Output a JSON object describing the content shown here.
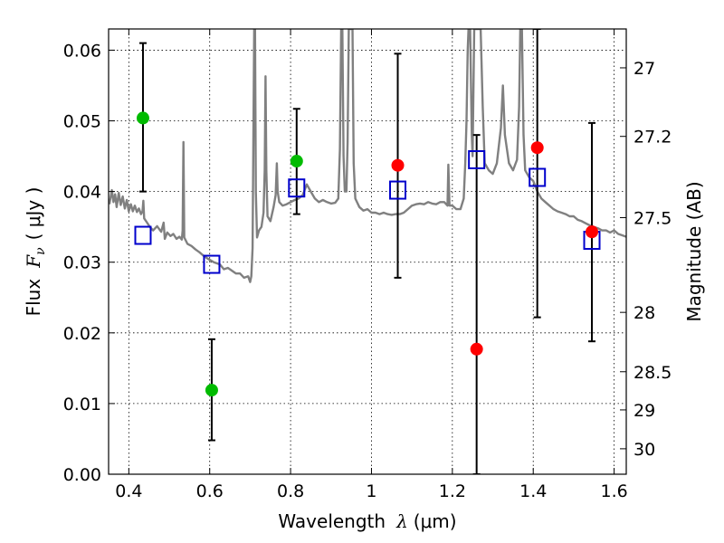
{
  "chart_data": {
    "type": "scatter",
    "xlabel": "Wavelength",
    "xlabel_symbol": "λ",
    "xlabel_unit": "(μm)",
    "ylabel": "Flux",
    "ylabel_symbol": "F",
    "ylabel_subscript": "ν",
    "ylabel_unit": "( μJy )",
    "y2label": "Magnitude (AB)",
    "xlim": [
      0.35,
      1.63
    ],
    "ylim": [
      0.0,
      0.063
    ],
    "grid": true,
    "grid_style": "dotted",
    "x_ticks": [
      0.4,
      0.6,
      0.8,
      1.0,
      1.2,
      1.4,
      1.6
    ],
    "x_tick_labels": [
      "0.4",
      "0.6",
      "0.8",
      "1",
      "1.2",
      "1.4",
      "1.6"
    ],
    "y_ticks": [
      0.0,
      0.01,
      0.02,
      0.03,
      0.04,
      0.05,
      0.06
    ],
    "y_tick_labels": [
      "0.00",
      "0.01",
      "0.02",
      "0.03",
      "0.04",
      "0.05",
      "0.06"
    ],
    "y2_ticks": [
      {
        "label": "27",
        "flux": 0.0575
      },
      {
        "label": "27.2",
        "flux": 0.0478
      },
      {
        "label": "27.5",
        "flux": 0.0363
      },
      {
        "label": "28",
        "flux": 0.0229
      },
      {
        "label": "28.5",
        "flux": 0.0145
      },
      {
        "label": "29",
        "flux": 0.0091
      },
      {
        "label": "30",
        "flux": 0.0036
      }
    ],
    "colors": {
      "spectrum": "#808080",
      "green": "#00bb00",
      "red": "#ff0000",
      "model_box": "#0000cc",
      "errorbar": "#000000"
    },
    "series": [
      {
        "marker": "line",
        "color": "#808080",
        "points": [
          [
            0.352,
            0.0382
          ],
          [
            0.358,
            0.0402
          ],
          [
            0.362,
            0.0385
          ],
          [
            0.366,
            0.0396
          ],
          [
            0.37,
            0.0378
          ],
          [
            0.375,
            0.0398
          ],
          [
            0.38,
            0.0381
          ],
          [
            0.385,
            0.0393
          ],
          [
            0.39,
            0.0376
          ],
          [
            0.395,
            0.0388
          ],
          [
            0.4,
            0.0372
          ],
          [
            0.405,
            0.0382
          ],
          [
            0.41,
            0.0372
          ],
          [
            0.415,
            0.038
          ],
          [
            0.42,
            0.0371
          ],
          [
            0.425,
            0.0376
          ],
          [
            0.43,
            0.0368
          ],
          [
            0.434,
            0.0372
          ],
          [
            0.436,
            0.0387
          ],
          [
            0.438,
            0.0362
          ],
          [
            0.445,
            0.0356
          ],
          [
            0.452,
            0.035
          ],
          [
            0.46,
            0.0345
          ],
          [
            0.47,
            0.0351
          ],
          [
            0.48,
            0.0343
          ],
          [
            0.486,
            0.0356
          ],
          [
            0.489,
            0.0333
          ],
          [
            0.495,
            0.0342
          ],
          [
            0.503,
            0.0337
          ],
          [
            0.51,
            0.034
          ],
          [
            0.518,
            0.0333
          ],
          [
            0.525,
            0.0336
          ],
          [
            0.531,
            0.0332
          ],
          [
            0.533,
            0.0345
          ],
          [
            0.535,
            0.047
          ],
          [
            0.537,
            0.0335
          ],
          [
            0.545,
            0.0326
          ],
          [
            0.555,
            0.0323
          ],
          [
            0.565,
            0.0318
          ],
          [
            0.575,
            0.0314
          ],
          [
            0.585,
            0.0309
          ],
          [
            0.595,
            0.0305
          ],
          [
            0.61,
            0.03
          ],
          [
            0.625,
            0.0297
          ],
          [
            0.635,
            0.029
          ],
          [
            0.645,
            0.0292
          ],
          [
            0.655,
            0.0288
          ],
          [
            0.665,
            0.0284
          ],
          [
            0.675,
            0.0284
          ],
          [
            0.685,
            0.0278
          ],
          [
            0.695,
            0.028
          ],
          [
            0.7,
            0.0272
          ],
          [
            0.703,
            0.028
          ],
          [
            0.706,
            0.032
          ],
          [
            0.708,
            0.048
          ],
          [
            0.71,
            0.063
          ],
          [
            0.712,
            0.063
          ],
          [
            0.714,
            0.04
          ],
          [
            0.717,
            0.0335
          ],
          [
            0.722,
            0.0345
          ],
          [
            0.728,
            0.035
          ],
          [
            0.733,
            0.037
          ],
          [
            0.736,
            0.043
          ],
          [
            0.738,
            0.0563
          ],
          [
            0.74,
            0.043
          ],
          [
            0.743,
            0.0365
          ],
          [
            0.75,
            0.0358
          ],
          [
            0.758,
            0.0378
          ],
          [
            0.763,
            0.0395
          ],
          [
            0.766,
            0.044
          ],
          [
            0.768,
            0.04
          ],
          [
            0.772,
            0.0385
          ],
          [
            0.78,
            0.038
          ],
          [
            0.79,
            0.0382
          ],
          [
            0.8,
            0.0385
          ],
          [
            0.81,
            0.0388
          ],
          [
            0.82,
            0.039
          ],
          [
            0.83,
            0.0395
          ],
          [
            0.84,
            0.041
          ],
          [
            0.85,
            0.04
          ],
          [
            0.86,
            0.039
          ],
          [
            0.87,
            0.0385
          ],
          [
            0.88,
            0.0388
          ],
          [
            0.89,
            0.0385
          ],
          [
            0.9,
            0.0383
          ],
          [
            0.91,
            0.0384
          ],
          [
            0.918,
            0.039
          ],
          [
            0.922,
            0.046
          ],
          [
            0.925,
            0.063
          ],
          [
            0.928,
            0.063
          ],
          [
            0.931,
            0.045
          ],
          [
            0.934,
            0.04
          ],
          [
            0.938,
            0.04
          ],
          [
            0.941,
            0.047
          ],
          [
            0.944,
            0.063
          ],
          [
            0.947,
            0.063
          ],
          [
            0.95,
            0.063
          ],
          [
            0.953,
            0.063
          ],
          [
            0.956,
            0.044
          ],
          [
            0.96,
            0.039
          ],
          [
            0.97,
            0.0378
          ],
          [
            0.98,
            0.0373
          ],
          [
            0.99,
            0.0375
          ],
          [
            1.0,
            0.037
          ],
          [
            1.01,
            0.037
          ],
          [
            1.02,
            0.0368
          ],
          [
            1.03,
            0.037
          ],
          [
            1.04,
            0.0368
          ],
          [
            1.05,
            0.0367
          ],
          [
            1.06,
            0.0368
          ],
          [
            1.07,
            0.0368
          ],
          [
            1.08,
            0.037
          ],
          [
            1.09,
            0.0375
          ],
          [
            1.1,
            0.038
          ],
          [
            1.11,
            0.0382
          ],
          [
            1.12,
            0.0383
          ],
          [
            1.13,
            0.0382
          ],
          [
            1.14,
            0.0385
          ],
          [
            1.15,
            0.0383
          ],
          [
            1.16,
            0.0382
          ],
          [
            1.17,
            0.0385
          ],
          [
            1.18,
            0.0385
          ],
          [
            1.188,
            0.038
          ],
          [
            1.19,
            0.0438
          ],
          [
            1.193,
            0.038
          ],
          [
            1.2,
            0.038
          ],
          [
            1.21,
            0.0375
          ],
          [
            1.22,
            0.0375
          ],
          [
            1.228,
            0.039
          ],
          [
            1.232,
            0.044
          ],
          [
            1.235,
            0.05
          ],
          [
            1.238,
            0.06
          ],
          [
            1.24,
            0.063
          ],
          [
            1.244,
            0.063
          ],
          [
            1.248,
            0.048
          ],
          [
            1.25,
            0.045
          ],
          [
            1.254,
            0.063
          ],
          [
            1.258,
            0.063
          ],
          [
            1.262,
            0.063
          ],
          [
            1.266,
            0.063
          ],
          [
            1.27,
            0.063
          ],
          [
            1.275,
            0.052
          ],
          [
            1.28,
            0.044
          ],
          [
            1.29,
            0.043
          ],
          [
            1.3,
            0.0425
          ],
          [
            1.31,
            0.044
          ],
          [
            1.32,
            0.049
          ],
          [
            1.325,
            0.055
          ],
          [
            1.33,
            0.048
          ],
          [
            1.34,
            0.044
          ],
          [
            1.35,
            0.043
          ],
          [
            1.36,
            0.0445
          ],
          [
            1.365,
            0.052
          ],
          [
            1.368,
            0.063
          ],
          [
            1.372,
            0.063
          ],
          [
            1.376,
            0.048
          ],
          [
            1.38,
            0.043
          ],
          [
            1.39,
            0.042
          ],
          [
            1.4,
            0.0415
          ],
          [
            1.41,
            0.04
          ],
          [
            1.42,
            0.039
          ],
          [
            1.43,
            0.0385
          ],
          [
            1.44,
            0.038
          ],
          [
            1.45,
            0.0375
          ],
          [
            1.46,
            0.0372
          ],
          [
            1.47,
            0.037
          ],
          [
            1.48,
            0.0368
          ],
          [
            1.49,
            0.0365
          ],
          [
            1.5,
            0.0365
          ],
          [
            1.51,
            0.036
          ],
          [
            1.52,
            0.0358
          ],
          [
            1.53,
            0.0355
          ],
          [
            1.54,
            0.0352
          ],
          [
            1.55,
            0.035
          ],
          [
            1.56,
            0.0348
          ],
          [
            1.57,
            0.0345
          ],
          [
            1.58,
            0.0345
          ],
          [
            1.59,
            0.0342
          ],
          [
            1.6,
            0.0345
          ],
          [
            1.61,
            0.034
          ],
          [
            1.62,
            0.0338
          ],
          [
            1.63,
            0.0336
          ]
        ]
      },
      {
        "marker": "circle",
        "color": "#00bb00",
        "points": [
          {
            "x": 0.435,
            "y": 0.0504,
            "err_lo": 0.04,
            "err_hi": 0.061
          },
          {
            "x": 0.605,
            "y": 0.0119,
            "err_lo": 0.0048,
            "err_hi": 0.0191
          },
          {
            "x": 0.815,
            "y": 0.0443,
            "err_lo": 0.0368,
            "err_hi": 0.0517
          }
        ]
      },
      {
        "marker": "circle",
        "color": "#ff0000",
        "points": [
          {
            "x": 1.065,
            "y": 0.0437,
            "err_lo": 0.0278,
            "err_hi": 0.0595
          },
          {
            "x": 1.26,
            "y": 0.0177,
            "err_lo": 0.0,
            "err_hi": 0.048
          },
          {
            "x": 1.41,
            "y": 0.0462,
            "err_lo": 0.0222,
            "err_hi": 0.063
          },
          {
            "x": 1.545,
            "y": 0.0343,
            "err_lo": 0.0188,
            "err_hi": 0.0497
          }
        ]
      },
      {
        "marker": "square",
        "color": "#0000cc",
        "points": [
          {
            "x": 0.435,
            "y": 0.0338
          },
          {
            "x": 0.605,
            "y": 0.0297
          },
          {
            "x": 0.815,
            "y": 0.0405
          },
          {
            "x": 1.065,
            "y": 0.0402
          },
          {
            "x": 1.26,
            "y": 0.0445
          },
          {
            "x": 1.41,
            "y": 0.042
          },
          {
            "x": 1.545,
            "y": 0.0331
          }
        ]
      }
    ]
  }
}
